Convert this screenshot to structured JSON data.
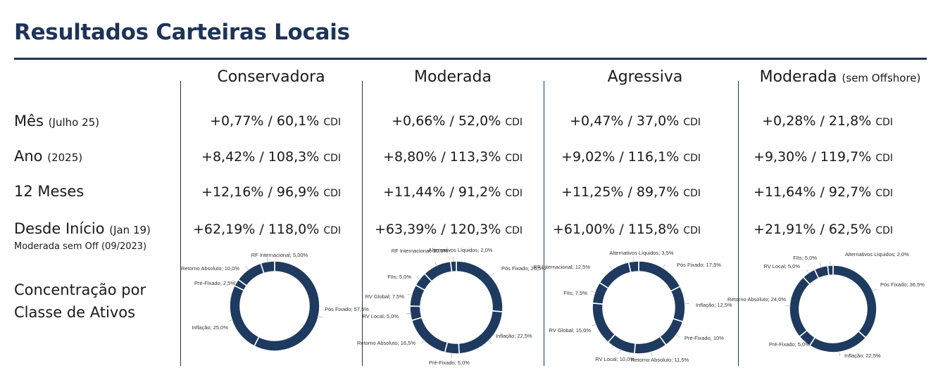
{
  "title": "Resultados Carteiras Locais",
  "columns": [
    {
      "name": "Conservadora",
      "sub": ""
    },
    {
      "name": "Moderada",
      "sub": ""
    },
    {
      "name": "Agressiva",
      "sub": ""
    },
    {
      "name": "Moderada",
      "sub": "(sem Offshore)"
    }
  ],
  "rows": [
    {
      "label": "Mês",
      "sub": "(Julho 25)",
      "values": [
        "+0,77% / 60,1%",
        "+0,66% / 52,0%",
        "+0,47% / 37,0%",
        "+0,28% / 21,8%"
      ]
    },
    {
      "label": "Ano",
      "sub": "(2025)",
      "values": [
        "+8,42% / 108,3%",
        "+8,80% / 113,3%",
        "+9,02% / 116,1%",
        "+9,30% / 119,7%"
      ]
    },
    {
      "label": "12 Meses",
      "sub": "",
      "values": [
        "+12,16% / 96,9%",
        "+11,44% / 91,2%",
        "+11,25% / 89,7%",
        "+11,64% / 92,7%"
      ]
    },
    {
      "label": "Desde Início",
      "sub": "(Jan 19)",
      "values": [
        "+62,19% / 118,0%",
        "+63,39% / 120,3%",
        "+61,00% / 115,8%",
        "+21,91% / 62,5%"
      ]
    }
  ],
  "cdi_label": "CDI",
  "note": "Moderada sem Off (09/2023)",
  "concentration_label": [
    "Concentração por",
    "Classe de Ativos"
  ],
  "colors": {
    "navy": "#1e3357",
    "ring": "#1f3a5f"
  },
  "chart_data": [
    {
      "type": "pie",
      "title": "",
      "slices": [
        {
          "label": "Pós Fixado; 57,5%",
          "value": 57.5
        },
        {
          "label": "Inflação; 25,0%",
          "value": 25.0
        },
        {
          "label": "Pré-Fixado; 2,5%",
          "value": 2.5
        },
        {
          "label": "Retorno Absoluto; 10,0%",
          "value": 10.0
        },
        {
          "label": "RF Internacional; 5,00%",
          "value": 5.0
        }
      ]
    },
    {
      "type": "pie",
      "title": "",
      "slices": [
        {
          "label": "Pós Fixado; 26,5%",
          "value": 26.5
        },
        {
          "label": "Inflação; 22,5%",
          "value": 22.5
        },
        {
          "label": "Pré-Fixado; 5,0%",
          "value": 5.0
        },
        {
          "label": "Retorno Absoluto; 16,5%",
          "value": 16.5
        },
        {
          "label": "RV Local; 5,0%",
          "value": 5.0
        },
        {
          "label": "RV Global; 7,5%",
          "value": 7.5
        },
        {
          "label": "FIIs; 5,0%",
          "value": 5.0
        },
        {
          "label": "RF Internacional; 10,0%",
          "value": 10.0
        },
        {
          "label": "Alternativos Líquidos; 2,0%",
          "value": 2.0
        }
      ]
    },
    {
      "type": "pie",
      "title": "",
      "slices": [
        {
          "label": "Pós Fixado; 17,5%",
          "value": 17.5
        },
        {
          "label": "Inflação; 12,5%",
          "value": 12.5
        },
        {
          "label": "Pré-Fixado; 10%",
          "value": 10.0
        },
        {
          "label": "Retorno Absoluto; 11,5%",
          "value": 11.5
        },
        {
          "label": "RV Local; 10,0%",
          "value": 10.0
        },
        {
          "label": "RV Global; 15,0%",
          "value": 15.0
        },
        {
          "label": "FIIs; 7,5%",
          "value": 7.5
        },
        {
          "label": "RF Internacional; 12,5%",
          "value": 12.5
        },
        {
          "label": "Alternativos Líquidos; 3,5%",
          "value": 3.5
        }
      ]
    },
    {
      "type": "pie",
      "title": "",
      "slices": [
        {
          "label": "Pós Fixado; 36,5%",
          "value": 36.5
        },
        {
          "label": "Inflação; 22,5%",
          "value": 22.5
        },
        {
          "label": "Pré-Fixado; 5,0%",
          "value": 5.0
        },
        {
          "label": "Retorno Absoluto; 24,0%",
          "value": 24.0
        },
        {
          "label": "RV Local; 5,0%",
          "value": 5.0
        },
        {
          "label": "FIIs; 5,0%",
          "value": 5.0
        },
        {
          "label": "Alternativos Líquidos; 2,0%",
          "value": 2.0
        }
      ]
    }
  ]
}
